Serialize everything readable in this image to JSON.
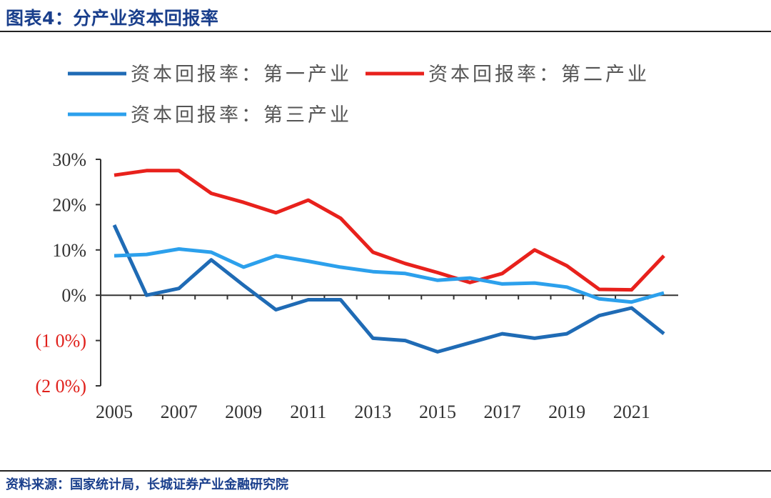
{
  "header": {
    "title": "图表4：分产业资本回报率"
  },
  "footer": {
    "source": "资料来源：国家统计局，长城证券产业金融研究院"
  },
  "colors": {
    "title": "#1a3f8c",
    "negative_tick": "#e0201b",
    "axis": "#333333"
  },
  "chart_data": {
    "type": "line",
    "title": "",
    "xlabel": "",
    "ylabel": "",
    "x": [
      2005,
      2006,
      2007,
      2008,
      2009,
      2010,
      2011,
      2012,
      2013,
      2014,
      2015,
      2016,
      2017,
      2018,
      2019,
      2020,
      2021,
      2022
    ],
    "xticks": [
      "2005",
      "2007",
      "2009",
      "2011",
      "2013",
      "2015",
      "2017",
      "2019",
      "2021"
    ],
    "ylim": [
      -20,
      30
    ],
    "yticks": [
      {
        "value": 30,
        "label": "30%"
      },
      {
        "value": 20,
        "label": "20%"
      },
      {
        "value": 10,
        "label": "10%"
      },
      {
        "value": 0,
        "label": "0%"
      },
      {
        "value": -10,
        "label": "(1 0%)"
      },
      {
        "value": -20,
        "label": "(2 0%)"
      }
    ],
    "legend_position": "top",
    "grid": false,
    "series": [
      {
        "name": "资本回报率：第一产业",
        "color": "#1f6bb5",
        "values": [
          15.5,
          0,
          1.5,
          7.8,
          2.2,
          -3.2,
          -1,
          -1,
          -9.5,
          -10,
          -12.5,
          -10.5,
          -8.5,
          -9.5,
          -8.5,
          -4.5,
          -2.8,
          -8.5
        ]
      },
      {
        "name": "资本回报率：第二产业",
        "color": "#e8211c",
        "values": [
          26.5,
          27.5,
          27.5,
          22.5,
          20.5,
          18.2,
          21,
          17,
          9.5,
          7,
          5,
          2.8,
          4.8,
          10,
          6.5,
          1.3,
          1.2,
          8.7
        ]
      },
      {
        "name": "资本回报率：第三产业",
        "color": "#2ca0ec",
        "values": [
          8.7,
          9,
          10.2,
          9.5,
          6.2,
          8.7,
          7.5,
          6.2,
          5.2,
          4.8,
          3.3,
          3.8,
          2.5,
          2.7,
          1.8,
          -0.8,
          -1.5,
          0.5
        ]
      }
    ]
  }
}
